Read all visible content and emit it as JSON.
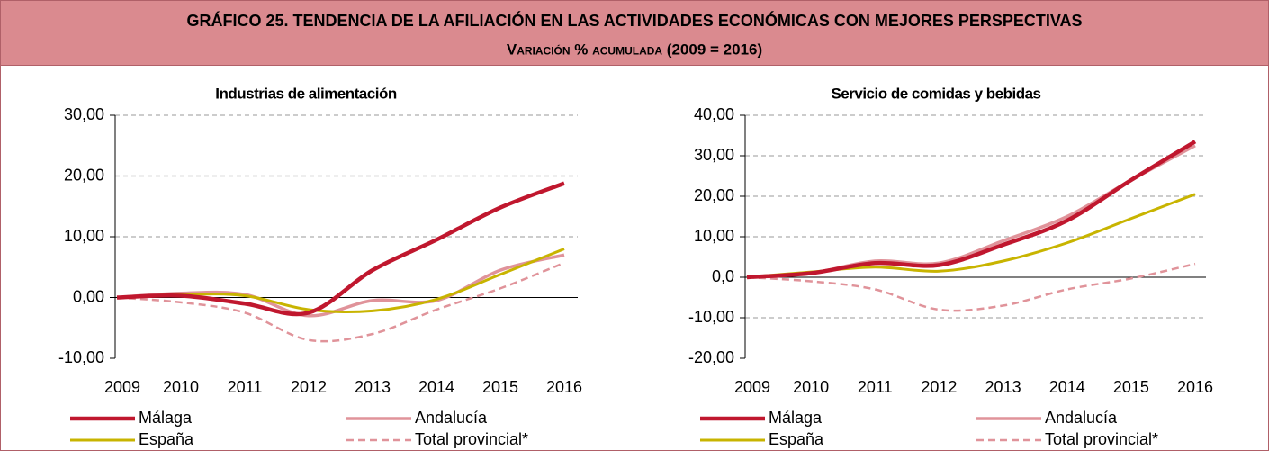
{
  "header": {
    "title": "GRÁFICO 25. TENDENCIA DE LA AFILIACIÓN EN LAS ACTIVIDADES ECONÓMICAS CON MEJORES PERSPECTIVAS",
    "subtitle": "Variación % acumulada (2009 = 2016)"
  },
  "chart_data": [
    {
      "type": "line",
      "title": "Industrias de alimentación",
      "categories": [
        "2009",
        "2010",
        "2011",
        "2012",
        "2013",
        "2014",
        "2015",
        "2016"
      ],
      "ylim": [
        -10,
        30
      ],
      "yticks": [
        {
          "value": -10,
          "label": "-10,00"
        },
        {
          "value": 0,
          "label": "0,00"
        },
        {
          "value": 10,
          "label": "10,00"
        },
        {
          "value": 20,
          "label": "20,00"
        },
        {
          "value": 30,
          "label": "30,00"
        }
      ],
      "grid": true,
      "series": [
        {
          "name": "Málaga",
          "color": "#c0172e",
          "values": [
            0,
            0.3,
            -1,
            -2.5,
            4.5,
            9.5,
            14.8,
            18.8
          ]
        },
        {
          "name": "Andalucía",
          "color": "#e0939a",
          "values": [
            0,
            0.7,
            0.5,
            -3,
            -0.5,
            -0.5,
            4.5,
            7
          ]
        },
        {
          "name": "España",
          "color": "#c8b400",
          "values": [
            0,
            0.5,
            0.3,
            -2,
            -2.2,
            -0.3,
            3.8,
            8
          ]
        },
        {
          "name": "Total provincial*",
          "color": "#e0939a",
          "dashed": true,
          "values": [
            0,
            -0.8,
            -2.5,
            -7,
            -6,
            -2,
            1.5,
            5.7
          ]
        }
      ]
    },
    {
      "type": "line",
      "title": "Servicio de comidas y bebidas",
      "categories": [
        "2009",
        "2010",
        "2011",
        "2012",
        "2013",
        "2014",
        "2015",
        "2016"
      ],
      "ylim": [
        -20,
        40
      ],
      "yticks": [
        {
          "value": -20,
          "label": "-20,00"
        },
        {
          "value": -10,
          "label": "-10,00"
        },
        {
          "value": 0,
          "label": "0,0"
        },
        {
          "value": 10,
          "label": "10,00"
        },
        {
          "value": 20,
          "label": "20,00"
        },
        {
          "value": 30,
          "label": "30,00"
        },
        {
          "value": 40,
          "label": "40,00"
        }
      ],
      "grid": true,
      "series": [
        {
          "name": "Málaga",
          "color": "#c0172e",
          "values": [
            0,
            1,
            3.5,
            3,
            8,
            14,
            24,
            33.5
          ]
        },
        {
          "name": "Andalucía",
          "color": "#e0939a",
          "values": [
            0,
            1,
            4,
            3.5,
            9,
            15,
            24,
            32.5
          ]
        },
        {
          "name": "España",
          "color": "#c8b400",
          "values": [
            0,
            1.3,
            2.5,
            1.5,
            4,
            8.5,
            14.5,
            20.5
          ]
        },
        {
          "name": "Total provincial*",
          "color": "#e0939a",
          "dashed": true,
          "values": [
            0,
            -1,
            -3,
            -8,
            -7,
            -3,
            -0.3,
            3.3
          ]
        }
      ]
    }
  ]
}
